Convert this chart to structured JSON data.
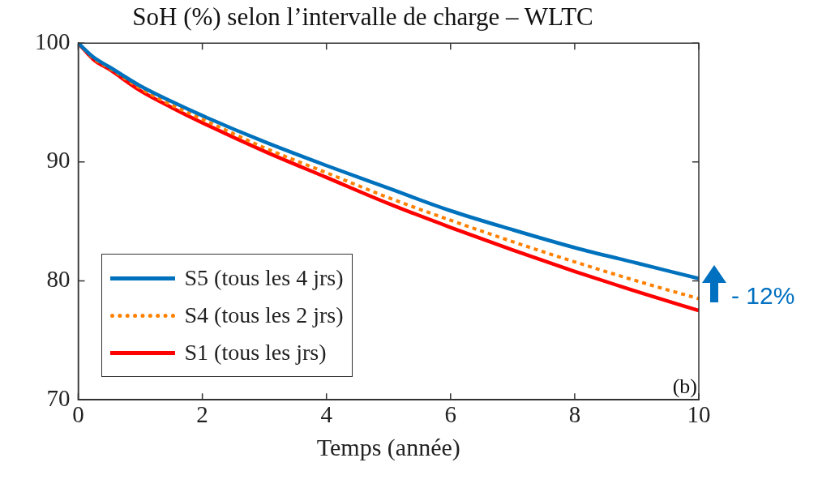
{
  "chart_data": {
    "type": "line",
    "title": "SoH (%) selon l’intervalle de charge – WLTC",
    "xlabel": "Temps (année)",
    "x": [
      0,
      0.25,
      0.5,
      1,
      1.5,
      2,
      3,
      4,
      5,
      6,
      7,
      8,
      9,
      10
    ],
    "series": [
      {
        "name": "S5 (tous les 4 jrs)",
        "color": "#0072bd",
        "values": [
          100,
          98.8,
          98.0,
          96.4,
          95.1,
          93.9,
          91.7,
          89.7,
          87.8,
          85.9,
          84.3,
          82.8,
          81.5,
          80.2
        ]
      },
      {
        "name": "S4 (tous les 2 jrs)",
        "color": "#ff8000",
        "line_style": "dotted",
        "values": [
          100,
          98.7,
          97.9,
          96.2,
          94.8,
          93.6,
          91.2,
          89.1,
          87.0,
          85.1,
          83.3,
          81.6,
          80.0,
          78.5
        ]
      },
      {
        "name": "S1 (tous les jrs)",
        "color": "#ff0000",
        "values": [
          100,
          98.6,
          97.8,
          96.0,
          94.6,
          93.3,
          90.9,
          88.7,
          86.5,
          84.5,
          82.6,
          80.8,
          79.1,
          77.5
        ]
      }
    ],
    "xlim": [
      0,
      10
    ],
    "xticks": [
      0,
      2,
      4,
      6,
      8,
      10
    ],
    "ylim": [
      70,
      100
    ],
    "yticks": [
      70,
      80,
      90,
      100
    ],
    "grid": false,
    "legend": "bottom left",
    "marker": "none",
    "line_style": "solid",
    "annotations": [
      "(b)",
      {
        "text": "- 12%",
        "x": 10,
        "y": 78.9
      }
    ]
  }
}
